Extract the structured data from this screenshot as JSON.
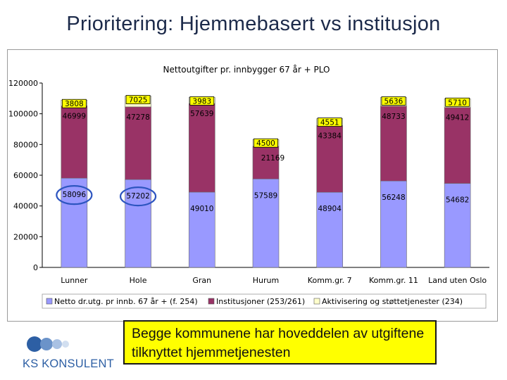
{
  "page": {
    "title": "Prioritering: Hjemmebasert vs institusjon"
  },
  "callout": {
    "text": "Begge kommunene har hoveddelen av utgiftene tilknyttet hjemmetjenesten"
  },
  "logo": {
    "text": "KS KONSULENT"
  },
  "chart_data": {
    "type": "bar",
    "stacked": true,
    "title": "Nettoutgifter pr. innbygger 67 år + PLO",
    "xlabel": "",
    "ylabel": "",
    "ylim": [
      0,
      120000
    ],
    "yticks": [
      0,
      20000,
      40000,
      60000,
      80000,
      100000,
      120000
    ],
    "grid": false,
    "legend_position": "bottom",
    "categories": [
      "Lunner",
      "Hole",
      "Gran",
      "Hurum",
      "Komm.gr. 7",
      "Komm.gr. 11",
      "Land uten Oslo"
    ],
    "series": [
      {
        "name": "Netto dr.utg. pr innb. 67 år + (f. 254)",
        "color": "#9999ff",
        "values": [
          58096,
          57202,
          49010,
          57589,
          48904,
          56248,
          54682
        ],
        "labels": [
          "58096",
          "57202",
          "49010",
          "57589",
          "48904",
          "56248",
          "54682"
        ]
      },
      {
        "name": "Institusjoner (253/261)",
        "color": "#993366",
        "values": [
          46999,
          47278,
          57639,
          21169,
          43384,
          48733,
          49412
        ],
        "labels": [
          "46999",
          "47278",
          "57639",
          "21169",
          "43384",
          "48733",
          "49412"
        ]
      },
      {
        "name": "Aktivisering og støttetjenester (234)",
        "color": "#ffffcc",
        "values": [
          3808,
          7025,
          3983,
          4500,
          4551,
          5636,
          5710
        ],
        "labels": [
          "3808",
          "7025",
          "3983",
          "4500",
          "4551",
          "5636",
          "5710"
        ]
      }
    ],
    "highlight": [
      "Lunner",
      "Hole"
    ]
  }
}
